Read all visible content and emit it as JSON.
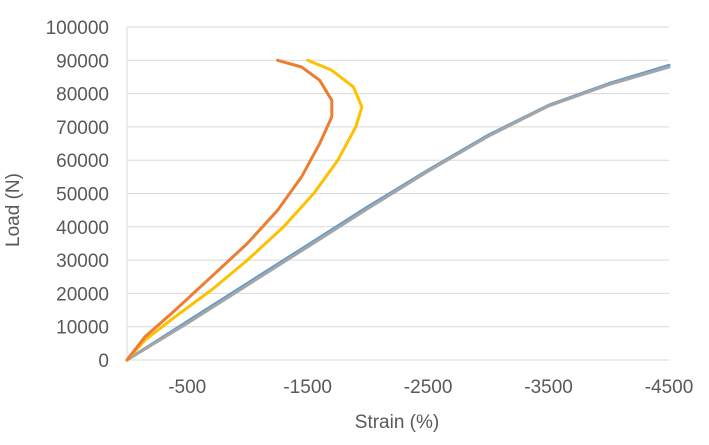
{
  "chart_data": {
    "type": "scatter",
    "title": "",
    "xlabel": "Strain (%)",
    "ylabel": "Load (N)",
    "xlim": [
      0,
      -4500
    ],
    "ylim": [
      0,
      100000
    ],
    "x_ticks": [
      -500,
      -1500,
      -2500,
      -3500,
      -4500
    ],
    "x_tick_labels": [
      "-500",
      "-1500",
      "-2500",
      "-3500",
      "-4500"
    ],
    "y_ticks": [
      0,
      10000,
      20000,
      30000,
      40000,
      50000,
      60000,
      70000,
      80000,
      90000,
      100000
    ],
    "y_tick_labels": [
      "0",
      "10000",
      "20000",
      "30000",
      "40000",
      "50000",
      "60000",
      "70000",
      "80000",
      "90000",
      "100000"
    ],
    "grid": true,
    "series": [
      {
        "color": "#5b9bd5",
        "points": [
          [
            0,
            0
          ],
          [
            -500,
            11500
          ],
          [
            -1000,
            23000
          ],
          [
            -1500,
            34500
          ],
          [
            -2000,
            46000
          ],
          [
            -2500,
            57000
          ],
          [
            -3000,
            67500
          ],
          [
            -3500,
            76500
          ],
          [
            -4000,
            83000
          ],
          [
            -4500,
            88500
          ]
        ]
      },
      {
        "color": "#a5a5a5",
        "points": [
          [
            0,
            0
          ],
          [
            -500,
            11000
          ],
          [
            -1000,
            22500
          ],
          [
            -1500,
            34000
          ],
          [
            -2000,
            45500
          ],
          [
            -2500,
            56700
          ],
          [
            -3000,
            67200
          ],
          [
            -3500,
            76300
          ],
          [
            -4000,
            82700
          ],
          [
            -4500,
            88000
          ]
        ]
      },
      {
        "color": "#ffc000",
        "points": [
          [
            0,
            0
          ],
          [
            -150,
            6000
          ],
          [
            -400,
            13000
          ],
          [
            -700,
            21000
          ],
          [
            -1000,
            30000
          ],
          [
            -1300,
            40000
          ],
          [
            -1550,
            50000
          ],
          [
            -1750,
            60000
          ],
          [
            -1900,
            70000
          ],
          [
            -1950,
            76000
          ],
          [
            -1880,
            82000
          ],
          [
            -1700,
            87000
          ],
          [
            -1500,
            90000
          ]
        ]
      },
      {
        "color": "#ed7d31",
        "points": [
          [
            0,
            0
          ],
          [
            -150,
            7000
          ],
          [
            -400,
            15000
          ],
          [
            -700,
            25000
          ],
          [
            -1000,
            35000
          ],
          [
            -1250,
            45000
          ],
          [
            -1450,
            55000
          ],
          [
            -1600,
            65000
          ],
          [
            -1700,
            73000
          ],
          [
            -1700,
            78000
          ],
          [
            -1600,
            84000
          ],
          [
            -1450,
            88000
          ],
          [
            -1250,
            90000
          ]
        ]
      }
    ]
  }
}
